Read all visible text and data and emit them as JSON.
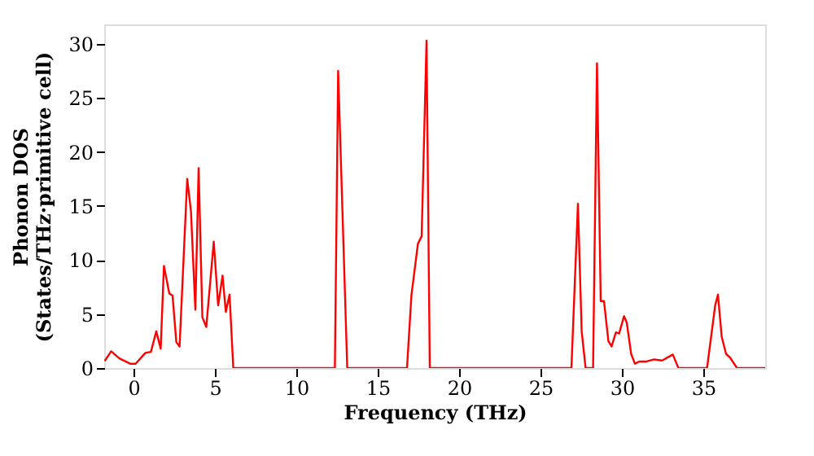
{
  "chart_data": {
    "type": "line",
    "xlabel": "Frequency (THz)",
    "ylabel": "Phonon DOS\n(States/THz·primitive cell)",
    "xlim": [
      -1.8,
      38.8
    ],
    "ylim": [
      0,
      31.8
    ],
    "xticks": [
      0,
      5,
      10,
      15,
      20,
      25,
      30,
      35
    ],
    "yticks": [
      0,
      5,
      10,
      15,
      20,
      25,
      30
    ],
    "grid": false,
    "marker": "none",
    "line_style": "solid",
    "series": [
      {
        "color": "#ff0000",
        "x": [
          -1.77,
          -1.37,
          -0.87,
          -0.2,
          0.13,
          0.73,
          1.07,
          1.4,
          1.67,
          1.87,
          2.2,
          2.4,
          2.63,
          2.83,
          3.3,
          3.53,
          3.8,
          4.0,
          4.23,
          4.47,
          4.93,
          5.2,
          5.47,
          5.67,
          5.9,
          6.13,
          12.37,
          12.57,
          13.13,
          16.8,
          17.07,
          17.47,
          17.7,
          18.0,
          18.2,
          26.9,
          27.3,
          27.53,
          27.77,
          28.23,
          28.47,
          28.7,
          28.9,
          29.17,
          29.37,
          29.63,
          29.83,
          30.13,
          30.3,
          30.57,
          30.8,
          31.07,
          31.47,
          31.97,
          32.47,
          33.13,
          33.47,
          35.23,
          35.73,
          35.9,
          36.13,
          36.4,
          36.63,
          37.07,
          38.8
        ],
        "values": [
          0.65,
          1.55,
          0.9,
          0.4,
          0.4,
          1.4,
          1.5,
          3.4,
          1.8,
          9.45,
          6.9,
          6.7,
          2.4,
          2.0,
          17.5,
          14.5,
          5.4,
          18.5,
          4.7,
          3.8,
          11.7,
          5.8,
          8.55,
          5.2,
          6.8,
          0,
          0,
          27.5,
          0,
          0,
          6.7,
          11.5,
          12.2,
          30.3,
          0,
          0,
          15.2,
          3.4,
          0,
          0,
          28.2,
          6.2,
          6.2,
          2.5,
          2.0,
          3.3,
          3.2,
          4.8,
          4.2,
          1.3,
          0.4,
          0.6,
          0.6,
          0.8,
          0.7,
          1.25,
          0,
          0,
          5.8,
          6.8,
          2.9,
          1.3,
          1.0,
          0,
          0
        ]
      }
    ]
  }
}
